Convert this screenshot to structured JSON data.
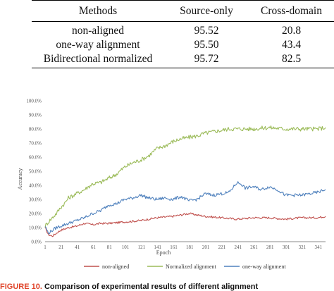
{
  "table": {
    "headers": [
      "Methods",
      "Source-only",
      "Cross-domain"
    ],
    "rows": [
      [
        "non-aligned",
        "95.52",
        "20.8"
      ],
      [
        "one-way alignment",
        "95.50",
        "43.4"
      ],
      [
        "Bidirectional normalized",
        "95.72",
        "82.5"
      ]
    ]
  },
  "chart_data": {
    "type": "line",
    "xlabel": "Epoch",
    "ylabel": "Accuracy",
    "ylim": [
      0,
      100
    ],
    "yticks": [
      "0.0%",
      "10.0%",
      "20.0%",
      "30.0%",
      "40.0%",
      "50.0%",
      "60.0%",
      "70.0%",
      "80.0%",
      "90.0%",
      "100.0%"
    ],
    "xticks": [
      "1",
      "21",
      "41",
      "61",
      "81",
      "101",
      "121",
      "141",
      "161",
      "181",
      "201",
      "221",
      "241",
      "261",
      "281",
      "301",
      "321",
      "341"
    ],
    "xlim": [
      1,
      350
    ],
    "grid": false,
    "legend_position": "bottom",
    "series": [
      {
        "name": "non-aligned",
        "color": "#c0504d",
        "x": [
          1,
          5,
          10,
          15,
          20,
          30,
          40,
          50,
          60,
          70,
          80,
          100,
          120,
          140,
          160,
          180,
          190,
          200,
          220,
          240,
          260,
          280,
          300,
          320,
          340,
          350
        ],
        "y": [
          10,
          5,
          4,
          6,
          8,
          10,
          11,
          13,
          12,
          13,
          13,
          14,
          15,
          17,
          18,
          20,
          19,
          18,
          17,
          16,
          17,
          17,
          16,
          17,
          17,
          18
        ]
      },
      {
        "name": "Normalized alignment",
        "color": "#9bbb59",
        "x": [
          1,
          5,
          10,
          15,
          20,
          25,
          30,
          40,
          50,
          60,
          70,
          80,
          90,
          100,
          110,
          120,
          130,
          140,
          150,
          160,
          170,
          180,
          190,
          200,
          210,
          220,
          230,
          240,
          260,
          280,
          300,
          320,
          340,
          350
        ],
        "y": [
          11,
          14,
          17,
          20,
          24,
          27,
          31,
          34,
          37,
          41,
          42,
          45,
          48,
          53,
          56,
          58,
          61,
          66,
          68,
          71,
          73,
          74,
          75,
          77,
          78,
          79,
          80,
          80,
          80,
          81,
          80,
          80,
          80,
          81
        ]
      },
      {
        "name": "one-way alignment",
        "color": "#4f81bd",
        "x": [
          1,
          5,
          10,
          15,
          20,
          30,
          40,
          50,
          60,
          70,
          80,
          90,
          100,
          110,
          120,
          130,
          140,
          150,
          160,
          170,
          180,
          190,
          200,
          210,
          220,
          230,
          240,
          245,
          250,
          260,
          270,
          280,
          290,
          300,
          310,
          320,
          330,
          340,
          350
        ],
        "y": [
          11,
          6,
          8,
          10,
          11,
          13,
          15,
          17,
          20,
          22,
          26,
          27,
          30,
          31,
          33,
          31,
          30,
          31,
          30,
          32,
          29,
          30,
          34,
          33,
          34,
          35,
          42,
          41,
          38,
          39,
          37,
          39,
          37,
          33,
          33,
          33,
          34,
          35,
          37
        ]
      }
    ]
  },
  "caption": {
    "figure_label": "FIGURE 10.",
    "text": "Comparison of experimental results of different alignment"
  }
}
